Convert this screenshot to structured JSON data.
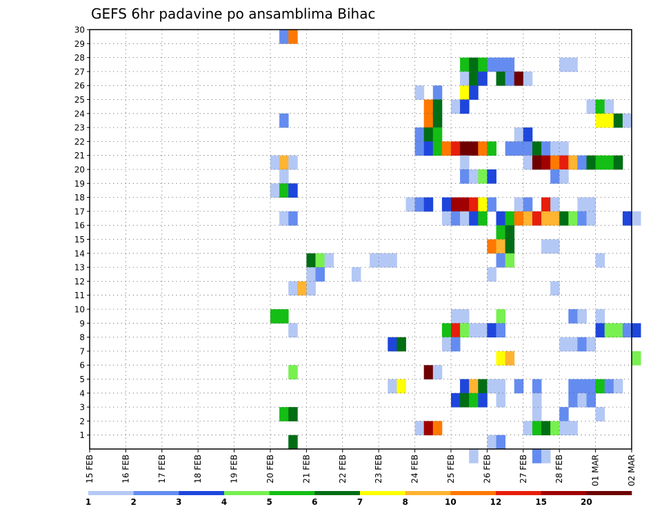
{
  "chart_data": {
    "type": "heatmap",
    "title": "GEFS 6hr padavine po ansamblima Bihac",
    "xlabel": "",
    "ylabel": "",
    "members": [
      1,
      2,
      3,
      4,
      5,
      6,
      7,
      8,
      9,
      10,
      11,
      12,
      13,
      14,
      15,
      16,
      17,
      18,
      19,
      20,
      21,
      22,
      23,
      24,
      25,
      26,
      27,
      28,
      29,
      30
    ],
    "x_tick_labels": [
      "15 FEB",
      "16 FEB",
      "17 FEB",
      "18 FEB",
      "19 FEB",
      "20 FEB",
      "21 FEB",
      "22 FEB",
      "23 FEB",
      "24 FEB",
      "25 FEB",
      "26 FEB",
      "27 FEB",
      "28 FEB",
      "01 MAR",
      "02 MAR"
    ],
    "x_range_days": [
      0,
      15
    ],
    "time_step": "6hr",
    "grid": "dotted",
    "colorbar": {
      "levels": [
        "1",
        "2",
        "3",
        "4",
        "5",
        "6",
        "7",
        "8",
        "10",
        "12",
        "15",
        "20"
      ],
      "colors": [
        "#b4c8f5",
        "#648cf0",
        "#1e46dc",
        "#78f050",
        "#14be14",
        "#006e14",
        "#ffff00",
        "#ffb432",
        "#ff7800",
        "#e61e0a",
        "#a00000",
        "#6e0000"
      ]
    },
    "cells": [
      {
        "m": 30,
        "t": [
          [
            21,
            2
          ],
          [
            22,
            9
          ]
        ]
      },
      {
        "m": 28,
        "t": [
          [
            41,
            5
          ],
          [
            42,
            6
          ],
          [
            43,
            5
          ],
          [
            44,
            2
          ],
          [
            45,
            2
          ],
          [
            46,
            2
          ],
          [
            52,
            1
          ],
          [
            53,
            1
          ]
        ]
      },
      {
        "m": 27,
        "t": [
          [
            41,
            1
          ],
          [
            42,
            6
          ],
          [
            43,
            3
          ],
          [
            45,
            6
          ],
          [
            46,
            2
          ],
          [
            47,
            12
          ],
          [
            48,
            1
          ]
        ]
      },
      {
        "m": 26,
        "t": [
          [
            36,
            1
          ],
          [
            38,
            2
          ],
          [
            41,
            7
          ],
          [
            42,
            3
          ]
        ]
      },
      {
        "m": 25,
        "t": [
          [
            37,
            9
          ],
          [
            38,
            6
          ],
          [
            40,
            1
          ],
          [
            41,
            3
          ],
          [
            55,
            1
          ],
          [
            56,
            5
          ],
          [
            57,
            1
          ]
        ]
      },
      {
        "m": 24,
        "t": [
          [
            21,
            2
          ],
          [
            37,
            9
          ],
          [
            38,
            6
          ],
          [
            56,
            7
          ],
          [
            57,
            7
          ],
          [
            58,
            6
          ],
          [
            59,
            1
          ]
        ]
      },
      {
        "m": 23,
        "t": [
          [
            36,
            2
          ],
          [
            37,
            6
          ],
          [
            38,
            5
          ],
          [
            47,
            1
          ],
          [
            48,
            3
          ]
        ]
      },
      {
        "m": 22,
        "t": [
          [
            36,
            2
          ],
          [
            37,
            3
          ],
          [
            38,
            5
          ],
          [
            39,
            9
          ],
          [
            40,
            10
          ],
          [
            41,
            12
          ],
          [
            42,
            12
          ],
          [
            43,
            9
          ],
          [
            44,
            5
          ],
          [
            46,
            2
          ],
          [
            47,
            2
          ],
          [
            48,
            2
          ],
          [
            49,
            6
          ],
          [
            50,
            2
          ],
          [
            51,
            1
          ],
          [
            52,
            1
          ]
        ]
      },
      {
        "m": 21,
        "t": [
          [
            20,
            1
          ],
          [
            21,
            8
          ],
          [
            22,
            1
          ],
          [
            41,
            1
          ],
          [
            48,
            1
          ],
          [
            49,
            12
          ],
          [
            50,
            11
          ],
          [
            51,
            9
          ],
          [
            52,
            10
          ],
          [
            53,
            8
          ],
          [
            54,
            2
          ],
          [
            55,
            6
          ],
          [
            56,
            5
          ],
          [
            57,
            5
          ],
          [
            58,
            6
          ]
        ]
      },
      {
        "m": 20,
        "t": [
          [
            21,
            1
          ],
          [
            41,
            2
          ],
          [
            42,
            1
          ],
          [
            43,
            4
          ],
          [
            44,
            3
          ],
          [
            51,
            2
          ],
          [
            52,
            1
          ]
        ]
      },
      {
        "m": 19,
        "t": [
          [
            20,
            1
          ],
          [
            21,
            5
          ],
          [
            22,
            3
          ]
        ]
      },
      {
        "m": 18,
        "t": [
          [
            35,
            1
          ],
          [
            36,
            2
          ],
          [
            37,
            3
          ],
          [
            39,
            3
          ],
          [
            40,
            11
          ],
          [
            41,
            11
          ],
          [
            42,
            10
          ],
          [
            43,
            7
          ],
          [
            44,
            2
          ],
          [
            47,
            1
          ],
          [
            48,
            2
          ],
          [
            50,
            10
          ],
          [
            51,
            1
          ],
          [
            54,
            1
          ],
          [
            55,
            1
          ]
        ]
      },
      {
        "m": 17,
        "t": [
          [
            21,
            1
          ],
          [
            22,
            2
          ],
          [
            39,
            1
          ],
          [
            40,
            2
          ],
          [
            41,
            1
          ],
          [
            42,
            3
          ],
          [
            43,
            5
          ],
          [
            45,
            3
          ],
          [
            46,
            5
          ],
          [
            47,
            9
          ],
          [
            48,
            8
          ],
          [
            49,
            10
          ],
          [
            50,
            8
          ],
          [
            51,
            8
          ],
          [
            52,
            6
          ],
          [
            53,
            4
          ],
          [
            54,
            2
          ],
          [
            55,
            1
          ],
          [
            59,
            3
          ],
          [
            60,
            1
          ]
        ]
      },
      {
        "m": 16,
        "t": [
          [
            45,
            5
          ],
          [
            46,
            6
          ]
        ]
      },
      {
        "m": 15,
        "t": [
          [
            44,
            9
          ],
          [
            45,
            8
          ],
          [
            46,
            6
          ],
          [
            50,
            1
          ],
          [
            51,
            1
          ]
        ]
      },
      {
        "m": 14,
        "t": [
          [
            24,
            6
          ],
          [
            25,
            4
          ],
          [
            26,
            1
          ],
          [
            31,
            1
          ],
          [
            32,
            1
          ],
          [
            33,
            1
          ],
          [
            45,
            2
          ],
          [
            46,
            4
          ],
          [
            56,
            1
          ]
        ]
      },
      {
        "m": 13,
        "t": [
          [
            24,
            1
          ],
          [
            25,
            2
          ],
          [
            29,
            1
          ],
          [
            44,
            1
          ]
        ]
      },
      {
        "m": 12,
        "t": [
          [
            22,
            1
          ],
          [
            23,
            8
          ],
          [
            24,
            1
          ],
          [
            51,
            1
          ]
        ]
      },
      {
        "m": 10,
        "t": [
          [
            20,
            5
          ],
          [
            21,
            5
          ],
          [
            40,
            1
          ],
          [
            41,
            1
          ],
          [
            45,
            4
          ],
          [
            53,
            2
          ],
          [
            54,
            1
          ],
          [
            56,
            1
          ]
        ]
      },
      {
        "m": 9,
        "t": [
          [
            22,
            1
          ],
          [
            39,
            5
          ],
          [
            40,
            10
          ],
          [
            41,
            4
          ],
          [
            42,
            1
          ],
          [
            43,
            1
          ],
          [
            44,
            3
          ],
          [
            45,
            2
          ],
          [
            56,
            3
          ],
          [
            57,
            4
          ],
          [
            58,
            4
          ],
          [
            59,
            2
          ],
          [
            60,
            3
          ]
        ]
      },
      {
        "m": 8,
        "t": [
          [
            33,
            3
          ],
          [
            34,
            6
          ],
          [
            39,
            1
          ],
          [
            40,
            2
          ],
          [
            52,
            1
          ],
          [
            53,
            1
          ],
          [
            54,
            2
          ],
          [
            55,
            1
          ]
        ]
      },
      {
        "m": 7,
        "t": [
          [
            45,
            7
          ],
          [
            46,
            8
          ],
          [
            60,
            4
          ]
        ]
      },
      {
        "m": 6,
        "t": [
          [
            22,
            4
          ],
          [
            37,
            12
          ],
          [
            38,
            1
          ]
        ]
      },
      {
        "m": 5,
        "t": [
          [
            33,
            1
          ],
          [
            34,
            7
          ],
          [
            41,
            3
          ],
          [
            42,
            8
          ],
          [
            43,
            6
          ],
          [
            44,
            1
          ],
          [
            45,
            1
          ],
          [
            47,
            2
          ],
          [
            49,
            2
          ],
          [
            53,
            2
          ],
          [
            54,
            2
          ],
          [
            55,
            2
          ],
          [
            56,
            5
          ],
          [
            57,
            2
          ],
          [
            58,
            1
          ]
        ]
      },
      {
        "m": 4,
        "t": [
          [
            40,
            3
          ],
          [
            41,
            6
          ],
          [
            42,
            5
          ],
          [
            43,
            3
          ],
          [
            45,
            1
          ],
          [
            49,
            1
          ],
          [
            53,
            2
          ],
          [
            54,
            1
          ],
          [
            55,
            2
          ]
        ]
      },
      {
        "m": 3,
        "t": [
          [
            21,
            5
          ],
          [
            22,
            6
          ],
          [
            49,
            1
          ],
          [
            52,
            2
          ],
          [
            56,
            1
          ]
        ]
      },
      {
        "m": 2,
        "t": [
          [
            36,
            1
          ],
          [
            37,
            11
          ],
          [
            38,
            9
          ],
          [
            48,
            1
          ],
          [
            49,
            5
          ],
          [
            50,
            6
          ],
          [
            51,
            4
          ],
          [
            52,
            1
          ],
          [
            53,
            1
          ]
        ]
      },
      {
        "m": 1,
        "t": [
          [
            22,
            6
          ],
          [
            44,
            1
          ],
          [
            45,
            2
          ]
        ]
      },
      {
        "m": 0,
        "t": [
          [
            42,
            1
          ],
          [
            49,
            2
          ],
          [
            50,
            1
          ]
        ]
      }
    ]
  }
}
